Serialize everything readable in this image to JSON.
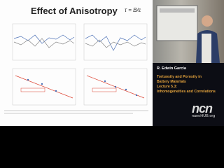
{
  "slide": {
    "title": "Effect of Anisotropy",
    "formula": "τ = B/ε"
  },
  "sidebar": {
    "presenter": "R. Edwin García",
    "lines": [
      "Tortuosity and Porosity in",
      "Battery Materials",
      "Lecture 5.3:",
      "Inhomogeneities and Correlations"
    ]
  },
  "logo": {
    "mark": "ncn",
    "site": "nanoHUB.org"
  }
}
